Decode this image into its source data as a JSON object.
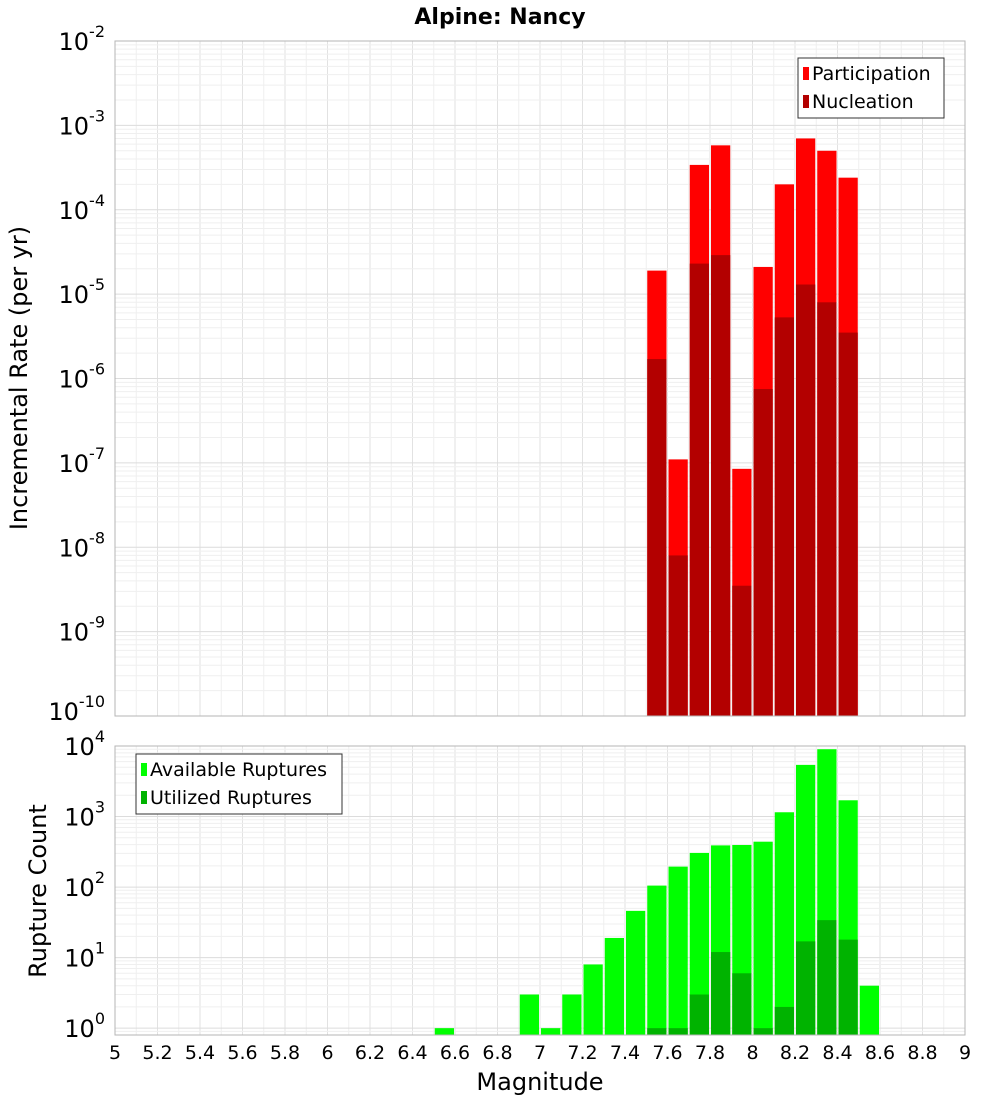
{
  "chart_data": [
    {
      "type": "bar",
      "title": "Alpine: Nancy",
      "ylabel": "Incremental Rate (per yr)",
      "xlabel": "",
      "xlim": [
        5,
        9
      ],
      "y_scale": "log",
      "ylim": [
        1e-10,
        0.01
      ],
      "y_ticks": [
        {
          "base": "10",
          "exp": "-10"
        },
        {
          "base": "10",
          "exp": "-9"
        },
        {
          "base": "10",
          "exp": "-8"
        },
        {
          "base": "10",
          "exp": "-7"
        },
        {
          "base": "10",
          "exp": "-6"
        },
        {
          "base": "10",
          "exp": "-5"
        },
        {
          "base": "10",
          "exp": "-4"
        },
        {
          "base": "10",
          "exp": "-3"
        },
        {
          "base": "10",
          "exp": "-2"
        }
      ],
      "grid": true,
      "legend_position": "top-right",
      "bar_width": 0.1,
      "series": [
        {
          "name": "Participation",
          "color": "#ff0000",
          "x": [
            7.55,
            7.65,
            7.75,
            7.85,
            7.95,
            8.05,
            8.15,
            8.25,
            8.35,
            8.45
          ],
          "values": [
            1.9e-05,
            1.1e-07,
            0.00034,
            0.00058,
            8.5e-08,
            2.1e-05,
            0.0002,
            0.0007,
            0.0005,
            0.00024
          ]
        },
        {
          "name": "Nucleation",
          "color": "#b30000",
          "x": [
            7.55,
            7.65,
            7.75,
            7.85,
            7.95,
            8.05,
            8.15,
            8.25,
            8.35,
            8.45
          ],
          "values": [
            1.7e-06,
            8e-09,
            2.3e-05,
            2.9e-05,
            3.5e-09,
            7.5e-07,
            5.3e-06,
            1.3e-05,
            8e-06,
            3.5e-06
          ]
        }
      ]
    },
    {
      "type": "bar",
      "title": "",
      "ylabel": "Rupture Count",
      "xlabel": "Magnitude",
      "xlim": [
        5,
        9
      ],
      "y_scale": "log",
      "ylim": [
        0.8,
        10000
      ],
      "y_ticks": [
        {
          "value": 1,
          "base": "10",
          "exp": "0"
        },
        {
          "value": 10,
          "base": "10",
          "exp": "1"
        },
        {
          "value": 100,
          "base": "10",
          "exp": "2"
        },
        {
          "value": 1000,
          "base": "10",
          "exp": "3"
        },
        {
          "value": 10000,
          "base": "10",
          "exp": "4"
        }
      ],
      "x_ticks": [
        "5",
        "5.2",
        "5.4",
        "5.6",
        "5.8",
        "6",
        "6.2",
        "6.4",
        "6.6",
        "6.8",
        "7",
        "7.2",
        "7.4",
        "7.6",
        "7.8",
        "8",
        "8.2",
        "8.4",
        "8.6",
        "8.8",
        "9"
      ],
      "grid": true,
      "legend_position": "top-left",
      "bar_width": 0.1,
      "series": [
        {
          "name": "Available Ruptures",
          "color": "#00ff00",
          "x": [
            6.55,
            6.95,
            7.05,
            7.15,
            7.25,
            7.35,
            7.45,
            7.55,
            7.65,
            7.75,
            7.85,
            7.95,
            8.05,
            8.15,
            8.25,
            8.35,
            8.45,
            8.55
          ],
          "values": [
            1,
            3,
            1,
            3,
            8,
            19,
            46,
            105,
            195,
            305,
            390,
            395,
            440,
            1150,
            5400,
            9000,
            1700,
            4
          ]
        },
        {
          "name": "Utilized Ruptures",
          "color": "#00b300",
          "x": [
            7.55,
            7.65,
            7.75,
            7.85,
            7.95,
            8.05,
            8.15,
            8.25,
            8.35,
            8.45
          ],
          "values": [
            1,
            1,
            3,
            12,
            6,
            1,
            2,
            17,
            34,
            18
          ]
        }
      ]
    }
  ]
}
